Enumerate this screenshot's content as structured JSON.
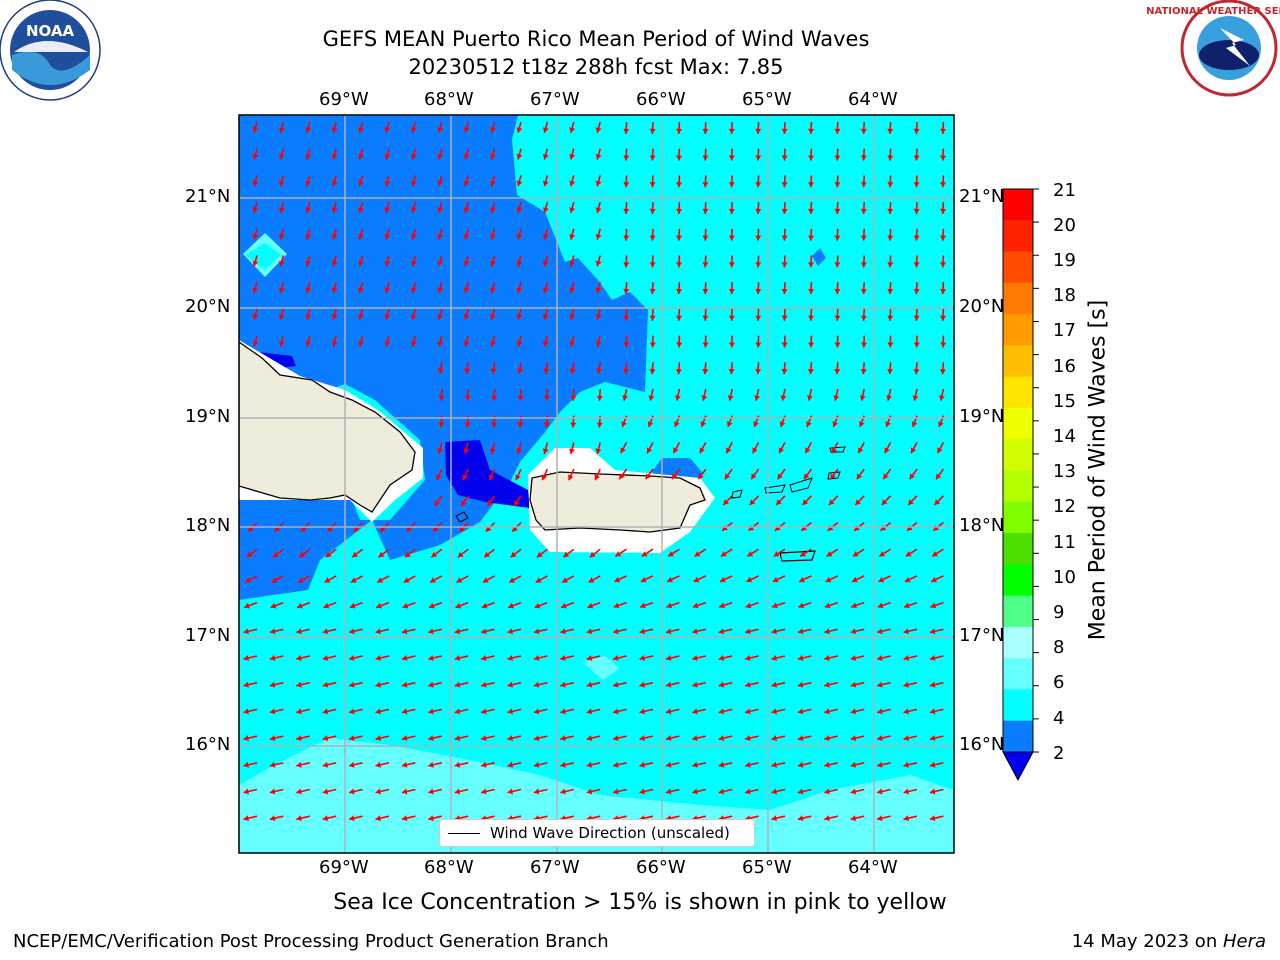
{
  "header": {
    "title_line1": "GEFS MEAN Puerto Rico Mean Period of Wind Waves",
    "title_line2": "20230512 t18z 288h fcst   Max: 7.85"
  },
  "logos": {
    "left": {
      "name": "noaa-logo",
      "text": "NOAA",
      "ring_text": "NATIONAL OCEANIC AND ATMOSPHERIC ADMINISTRATION · U.S. DEPARTMENT OF COMMERCE"
    },
    "right": {
      "name": "national-weather-service-logo",
      "ring_text": "NATIONAL WEATHER SERVICE"
    }
  },
  "map": {
    "lon_labels": [
      "69°W",
      "68°W",
      "67°W",
      "66°W",
      "65°W",
      "64°W"
    ],
    "lat_labels": [
      "21°N",
      "20°N",
      "19°N",
      "18°N",
      "17°N",
      "16°N"
    ],
    "legend_label": "Wind Wave Direction (unscaled)",
    "arrow_color": "#ff0000",
    "land_color": "#efecdc",
    "colors": {
      "band_2_4": "#0a7cff",
      "band_4_6": "#00ffff",
      "band_6_8": "#66ffff",
      "below_2": "#0000ee"
    }
  },
  "colorbar": {
    "title": "Mean Period of Wind Waves [s]",
    "ticks": [
      "21",
      "20",
      "19",
      "18",
      "17",
      "16",
      "15",
      "14",
      "13",
      "12",
      "11",
      "10",
      "9",
      "8",
      "6",
      "4",
      "2"
    ],
    "colors": [
      "#ff0000",
      "#ff2400",
      "#ff4d00",
      "#ff7a00",
      "#ff9a00",
      "#ffbe00",
      "#ffe400",
      "#eeff00",
      "#d2ff00",
      "#b2ff00",
      "#7fff00",
      "#4be000",
      "#00ff00",
      "#4fff88",
      "#aaffff",
      "#66ffff",
      "#00ffff",
      "#0a7cff"
    ],
    "extend_color": "#0000ee"
  },
  "footer": {
    "note": "Sea Ice Concentration > 15% is shown in pink to yellow",
    "left": "NCEP/EMC/Verification Post Processing Product Generation Branch",
    "right_prefix": "14 May 2023 on ",
    "right_host": "Hera"
  }
}
